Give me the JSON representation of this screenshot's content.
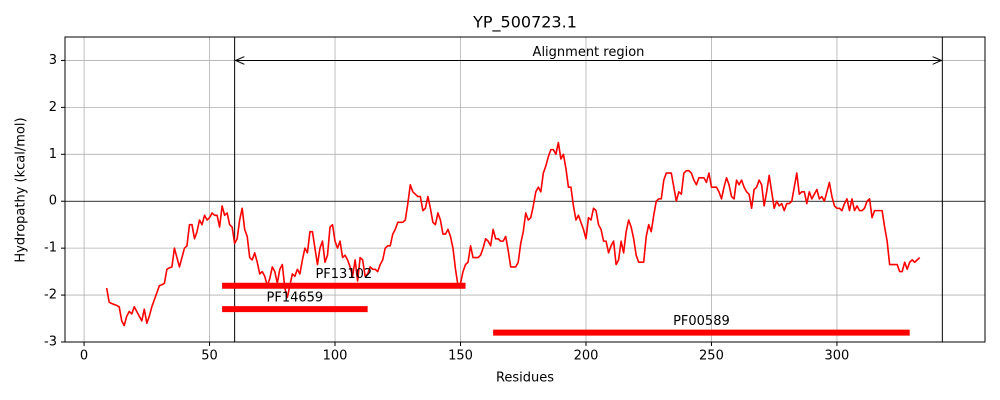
{
  "chart_data": {
    "type": "line",
    "title": "YP_500723.1",
    "xlabel": "Residues",
    "ylabel": "Hydropathy (kcal/mol)",
    "x": [
      9,
      10,
      11,
      12,
      13,
      14,
      15,
      16,
      17,
      18,
      19,
      20,
      21,
      22,
      23,
      24,
      25,
      26,
      27,
      28,
      29,
      30,
      31,
      32,
      33,
      34,
      35,
      36,
      37,
      38,
      39,
      40,
      41,
      42,
      43,
      44,
      45,
      46,
      47,
      48,
      49,
      50,
      51,
      52,
      53,
      54,
      55,
      56,
      57,
      58,
      59,
      60,
      61,
      62,
      63,
      64,
      65,
      66,
      67,
      68,
      69,
      70,
      71,
      72,
      73,
      74,
      75,
      76,
      77,
      78,
      79,
      80,
      81,
      82,
      83,
      84,
      85,
      86,
      87,
      88,
      89,
      90,
      91,
      92,
      93,
      94,
      95,
      96,
      97,
      98,
      99,
      100,
      101,
      102,
      103,
      104,
      105,
      106,
      107,
      108,
      109,
      110,
      111,
      112,
      113,
      114,
      115,
      116,
      117,
      118,
      119,
      120,
      121,
      122,
      123,
      124,
      125,
      126,
      127,
      128,
      129,
      130,
      131,
      132,
      133,
      134,
      135,
      136,
      137,
      138,
      139,
      140,
      141,
      142,
      143,
      144,
      145,
      146,
      147,
      148,
      149,
      150,
      151,
      152,
      153,
      154,
      155,
      156,
      157,
      158,
      159,
      160,
      161,
      162,
      163,
      164,
      165,
      166,
      167,
      168,
      169,
      170,
      171,
      172,
      173,
      174,
      175,
      176,
      177,
      178,
      179,
      180,
      181,
      182,
      183,
      184,
      185,
      186,
      187,
      188,
      189,
      190,
      191,
      192,
      193,
      194,
      195,
      196,
      197,
      198,
      199,
      200,
      201,
      202,
      203,
      204,
      205,
      206,
      207,
      208,
      209,
      210,
      211,
      212,
      213,
      214,
      215,
      216,
      217,
      218,
      219,
      220,
      221,
      222,
      223,
      224,
      225,
      226,
      227,
      228,
      229,
      230,
      231,
      232,
      233,
      234,
      235,
      236,
      237,
      238,
      239,
      240,
      241,
      242,
      243,
      244,
      245,
      246,
      247,
      248,
      249,
      250,
      251,
      252,
      253,
      254,
      255,
      256,
      257,
      258,
      259,
      260,
      261,
      262,
      263,
      264,
      265,
      266,
      267,
      268,
      269,
      270,
      271,
      272,
      273,
      274,
      275,
      276,
      277,
      278,
      279,
      280,
      281,
      282,
      283,
      284,
      285,
      286,
      287,
      288,
      289,
      290,
      291,
      292,
      293,
      294,
      295,
      296,
      297,
      298,
      299,
      300,
      301,
      302,
      303,
      304,
      305,
      306,
      307,
      308,
      309,
      310,
      311,
      312,
      313,
      314,
      315,
      316,
      317,
      318,
      319,
      320,
      321,
      322,
      323,
      324,
      325,
      326,
      327,
      328,
      329,
      330,
      331,
      332,
      333
    ],
    "values": [
      -1.85,
      -2.15,
      -2.18,
      -2.2,
      -2.22,
      -2.25,
      -2.55,
      -2.65,
      -2.45,
      -2.35,
      -2.4,
      -2.25,
      -2.35,
      -2.45,
      -2.55,
      -2.3,
      -2.6,
      -2.45,
      -2.25,
      -2.1,
      -1.95,
      -1.8,
      -1.78,
      -1.75,
      -1.45,
      -1.42,
      -1.4,
      -1.0,
      -1.2,
      -1.4,
      -1.2,
      -1.0,
      -0.95,
      -0.5,
      -0.5,
      -0.8,
      -0.65,
      -0.4,
      -0.5,
      -0.3,
      -0.4,
      -0.35,
      -0.25,
      -0.3,
      -0.3,
      -0.55,
      -0.1,
      -0.3,
      -0.25,
      -0.5,
      -0.55,
      -0.9,
      -0.8,
      -0.4,
      -0.15,
      -0.6,
      -0.75,
      -1.2,
      -1.25,
      -1.1,
      -1.3,
      -1.55,
      -1.5,
      -1.6,
      -1.8,
      -1.65,
      -1.4,
      -1.5,
      -1.75,
      -1.45,
      -1.35,
      -1.85,
      -2.05,
      -1.8,
      -1.55,
      -1.6,
      -1.45,
      -1.55,
      -1.25,
      -1.0,
      -1.1,
      -0.65,
      -0.65,
      -1.0,
      -1.35,
      -1.0,
      -0.85,
      -1.3,
      -1.15,
      -0.55,
      -0.5,
      -0.85,
      -1.0,
      -0.85,
      -1.2,
      -1.15,
      -1.25,
      -1.4,
      -1.6,
      -1.25,
      -1.7,
      -1.2,
      -1.25,
      -1.6,
      -1.55,
      -1.4,
      -1.45,
      -1.45,
      -1.5,
      -1.35,
      -1.25,
      -1.0,
      -0.95,
      -0.95,
      -0.7,
      -0.6,
      -0.45,
      -0.45,
      -0.45,
      -0.4,
      -0.05,
      0.35,
      0.2,
      0.15,
      0.1,
      0.1,
      -0.2,
      -0.15,
      0.1,
      -0.15,
      -0.45,
      -0.5,
      -0.25,
      -0.4,
      -0.7,
      -0.7,
      -0.6,
      -0.75,
      -1.0,
      -1.45,
      -1.8,
      -1.75,
      -1.5,
      -1.35,
      -1.3,
      -0.95,
      -1.2,
      -1.2,
      -1.2,
      -1.15,
      -1.0,
      -0.8,
      -0.85,
      -0.95,
      -0.6,
      -0.8,
      -0.8,
      -0.85,
      -0.85,
      -0.75,
      -1.05,
      -1.4,
      -1.4,
      -1.4,
      -1.3,
      -0.9,
      -0.65,
      -0.25,
      -0.4,
      -0.35,
      -0.1,
      0.2,
      0.3,
      0.2,
      0.6,
      0.75,
      0.95,
      1.1,
      1.1,
      1.0,
      1.25,
      0.9,
      1.0,
      0.7,
      0.3,
      0.3,
      -0.1,
      -0.4,
      -0.3,
      -0.45,
      -0.6,
      -0.8,
      -0.35,
      -0.4,
      -0.15,
      -0.2,
      -0.5,
      -0.6,
      -0.85,
      -0.85,
      -1.1,
      -0.95,
      -0.85,
      -1.35,
      -1.25,
      -0.85,
      -1.1,
      -0.65,
      -0.4,
      -0.55,
      -0.8,
      -1.15,
      -1.3,
      -1.3,
      -1.3,
      -0.75,
      -0.5,
      -0.65,
      -0.3,
      0.0,
      0.05,
      0.05,
      0.45,
      0.6,
      0.6,
      0.6,
      0.3,
      0.0,
      0.2,
      0.15,
      0.6,
      0.65,
      0.65,
      0.6,
      0.45,
      0.35,
      0.5,
      0.5,
      0.5,
      0.4,
      0.6,
      0.3,
      0.3,
      0.3,
      0.2,
      0.05,
      0.3,
      0.5,
      0.35,
      0.1,
      0.05,
      0.45,
      0.35,
      0.45,
      0.3,
      0.2,
      0.15,
      -0.15,
      0.25,
      0.3,
      0.45,
      0.35,
      -0.1,
      0.2,
      0.55,
      0.2,
      -0.15,
      0.0,
      -0.1,
      -0.05,
      -0.2,
      -0.05,
      -0.05,
      0.0,
      0.3,
      0.6,
      0.15,
      0.2,
      0.2,
      -0.05,
      0.2,
      0.05,
      0.15,
      0.25,
      0.05,
      0.1,
      0.0,
      0.2,
      0.4,
      0.1,
      -0.1,
      -0.15,
      -0.15,
      -0.2,
      -0.05,
      0.05,
      -0.2,
      0.05,
      -0.2,
      -0.1,
      -0.2,
      -0.2,
      -0.15,
      0.0,
      0.05,
      -0.35,
      -0.2,
      -0.2,
      -0.2,
      -0.2,
      -0.55,
      -0.85,
      -1.35,
      -1.35,
      -1.35,
      -1.35,
      -1.5,
      -1.5,
      -1.3,
      -1.45,
      -1.3,
      -1.25,
      -1.3,
      -1.25,
      -1.2
    ],
    "color": "#ff0000",
    "xlim": [
      -7.6,
      359
    ],
    "ylim": [
      -3,
      3.5
    ],
    "xticks": [
      0,
      50,
      100,
      150,
      200,
      250,
      300
    ],
    "yticks": [
      -3,
      -2,
      -1,
      0,
      1,
      2,
      3
    ],
    "grid": true,
    "hline": 0,
    "region": {
      "start": 60,
      "end": 342,
      "y": 3,
      "label": "Alignment region"
    },
    "domains": [
      {
        "name": "PF13102",
        "start": 55,
        "end": 152,
        "y": -1.8,
        "color": "#ff0000"
      },
      {
        "name": "PF14659",
        "start": 55,
        "end": 113,
        "y": -2.3,
        "color": "#ff0000"
      },
      {
        "name": "PF00589",
        "start": 163,
        "end": 329,
        "y": -2.8,
        "color": "#ff0000"
      }
    ]
  }
}
